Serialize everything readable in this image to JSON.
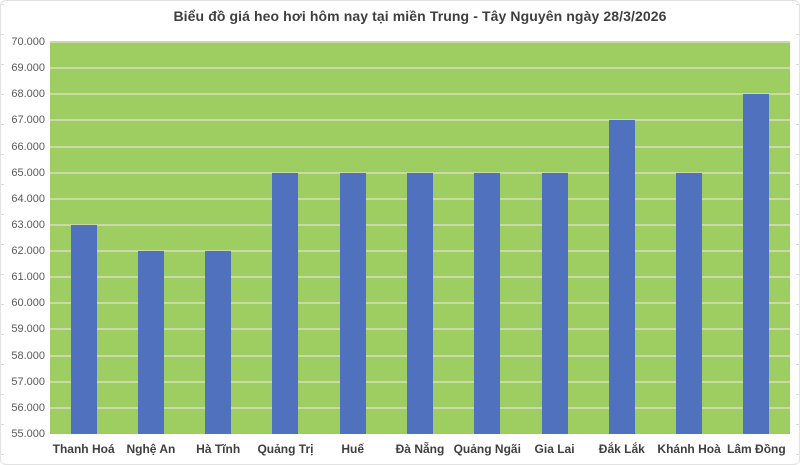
{
  "chart_data": {
    "type": "bar",
    "title": "Biểu đồ giá heo hơi hôm nay tại miền Trung - Tây Nguyên ngày 28/3/2026",
    "categories": [
      "Thanh Hoá",
      "Nghệ An",
      "Hà Tĩnh",
      "Quảng Trị",
      "Huế",
      "Đà Nẵng",
      "Quảng Ngãi",
      "Gia Lai",
      "Đắk Lắk",
      "Khánh Hoà",
      "Lâm Đồng"
    ],
    "values": [
      63000,
      62000,
      62000,
      65000,
      65000,
      65000,
      65000,
      65000,
      67000,
      65000,
      68000
    ],
    "xlabel": "",
    "ylabel": "",
    "ylim": [
      55000,
      70000
    ],
    "ytick_step": 1000,
    "ytick_labels": [
      "55.000",
      "56.000",
      "57.000",
      "58.000",
      "59.000",
      "60.000",
      "61.000",
      "62.000",
      "63.000",
      "64.000",
      "65.000",
      "66.000",
      "67.000",
      "68.000",
      "69.000",
      "70.000"
    ],
    "grid": true,
    "legend": "none"
  },
  "colors": {
    "bar": "#4f71be",
    "plot_background": "#9ecd62",
    "gridline": "#c9d9a8",
    "title_text": "#3f3f3f",
    "axis_text": "#595959",
    "category_text": "#3f3f3f",
    "chart_border": "#e2e2e2"
  }
}
